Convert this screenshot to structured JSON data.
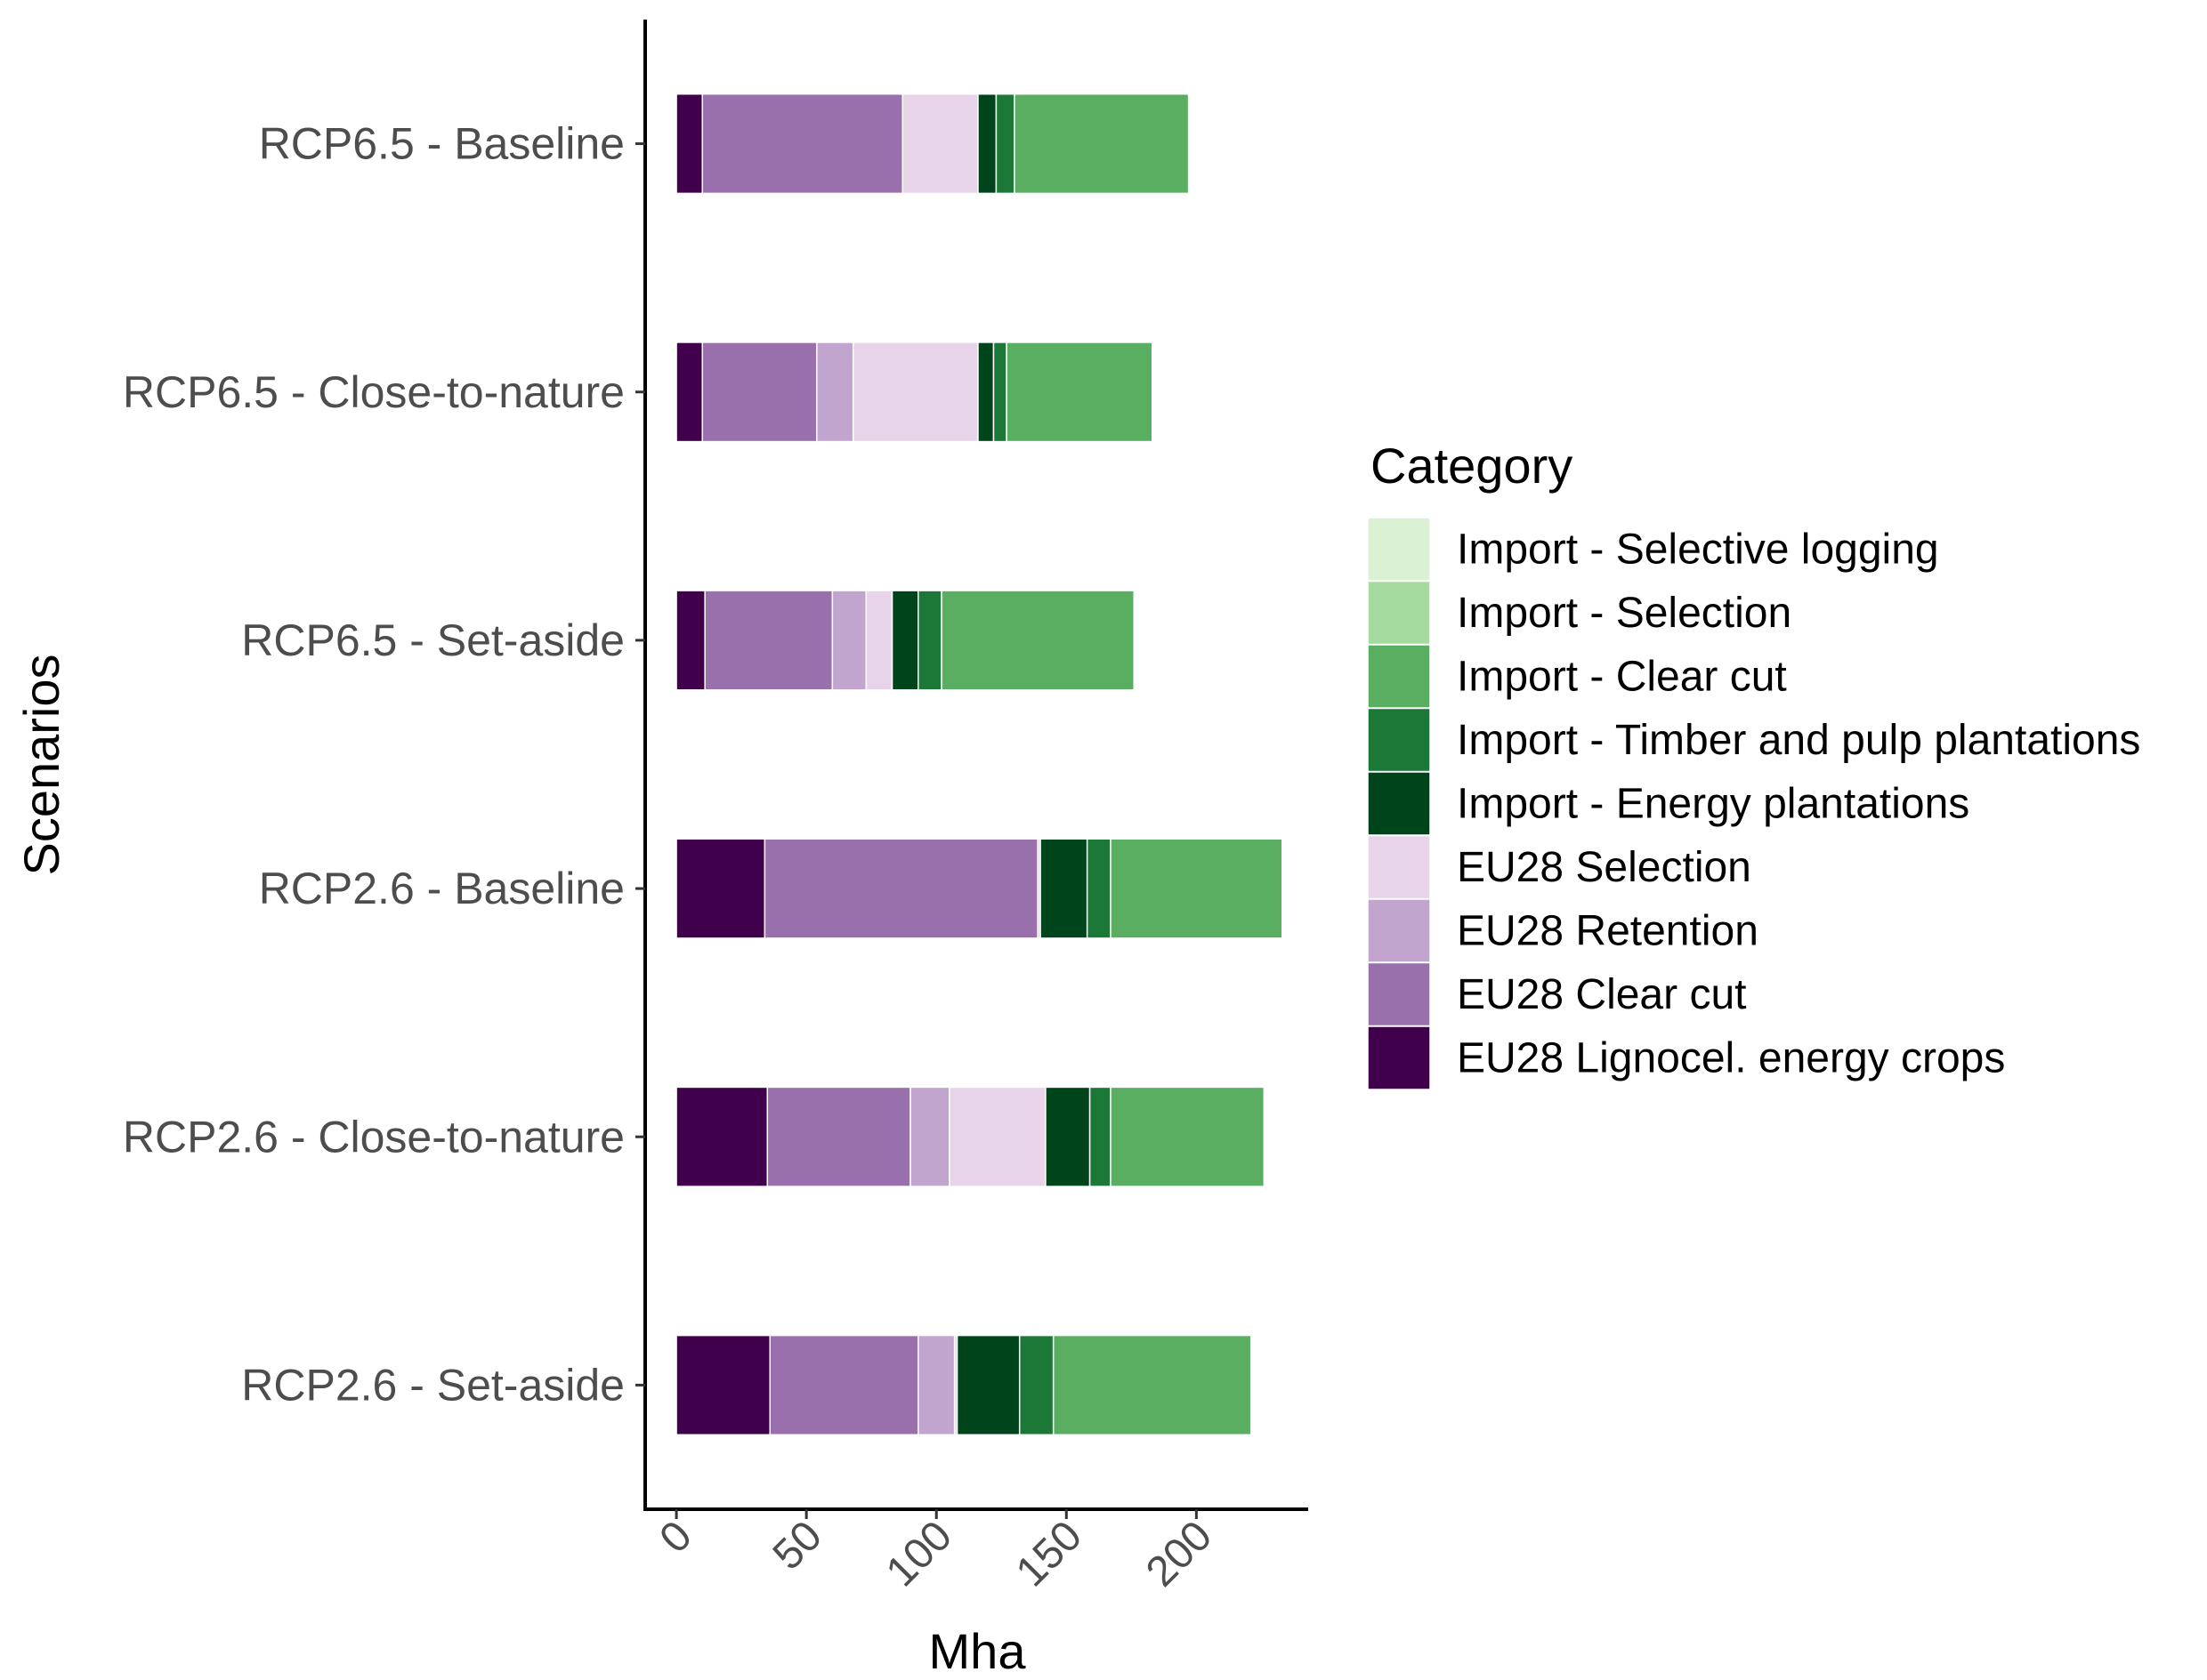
{
  "chart_data": {
    "type": "bar",
    "orientation": "horizontal",
    "stacked": true,
    "xlabel": "Mha",
    "ylabel": "Scenarios",
    "xlim": [
      -12,
      243
    ],
    "xticks": [
      0,
      50,
      100,
      150,
      200
    ],
    "grid": false,
    "legend_title": "Category",
    "legend_position": "right",
    "categories": [
      "RCP6.5 - Baseline",
      "RCP6.5 - Close-to-nature",
      "RCP6.5 - Set-aside",
      "RCP2.6 - Baseline",
      "RCP2.6 - Close-to-nature",
      "RCP2.6 - Set-aside"
    ],
    "series": [
      {
        "name": "EU28 Lignocel. energy crops",
        "color": "#40004b",
        "values": [
          10,
          10,
          11,
          34,
          35,
          36
        ]
      },
      {
        "name": "EU28 Clear cut",
        "color": "#9970ab",
        "values": [
          77,
          44,
          49,
          105,
          55,
          57
        ]
      },
      {
        "name": "EU28 Retention",
        "color": "#c2a5cf",
        "values": [
          0,
          14,
          13,
          0,
          15,
          14
        ]
      },
      {
        "name": "EU28 Selection",
        "color": "#e7d4e8",
        "values": [
          29,
          48,
          10,
          1,
          37,
          1
        ]
      },
      {
        "name": "Import - Energy plantations",
        "color": "#00441b",
        "values": [
          7,
          6,
          10,
          18,
          17,
          24
        ]
      },
      {
        "name": "Import - Timber and pulp plantations",
        "color": "#1b7837",
        "values": [
          7,
          5,
          9,
          9,
          8,
          13
        ]
      },
      {
        "name": "Import - Clear cut",
        "color": "#5aae61",
        "values": [
          67,
          56,
          74,
          66,
          59,
          76
        ]
      },
      {
        "name": "Import - Selection",
        "color": "#a6dba0",
        "values": [
          0,
          0,
          0,
          0,
          0,
          0
        ]
      },
      {
        "name": "Import - Selective logging",
        "color": "#d9f0d3",
        "values": [
          0,
          0,
          0,
          0,
          0,
          0
        ]
      }
    ],
    "legend_order": [
      "Import - Selective logging",
      "Import - Selection",
      "Import - Clear cut",
      "Import - Timber and pulp plantations",
      "Import - Energy plantations",
      "EU28 Selection",
      "EU28 Retention",
      "EU28 Clear cut",
      "EU28 Lignocel. energy crops"
    ]
  }
}
